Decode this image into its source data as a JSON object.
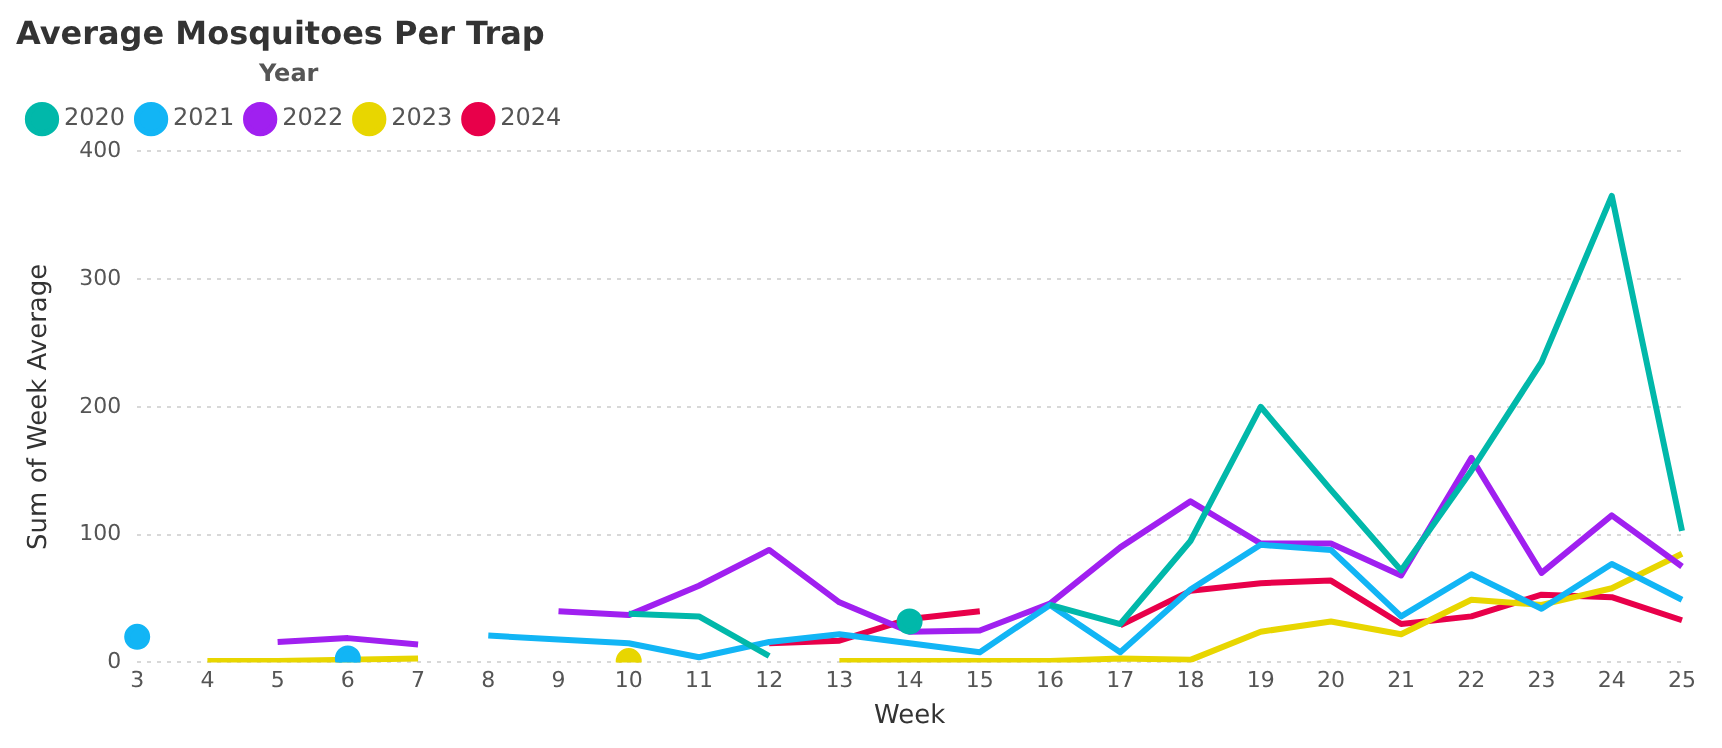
{
  "chart_data": {
    "type": "line",
    "title": "Average Mosquitoes Per Trap",
    "xlabel": "Week",
    "ylabel": "Sum of Week Average",
    "legend_title": "Year",
    "legend": "top left",
    "grid": "y",
    "categories": [
      "3",
      "4",
      "5",
      "6",
      "7",
      "8",
      "9",
      "10",
      "11",
      "12",
      "13",
      "14",
      "15",
      "16",
      "17",
      "18",
      "19",
      "20",
      "21",
      "22",
      "23",
      "24",
      "25"
    ],
    "ylim": [
      0,
      400
    ],
    "yticks": [
      0,
      100,
      200,
      300,
      400
    ],
    "series": [
      {
        "name": "2020",
        "color": "#01b8aa",
        "values": [
          null,
          null,
          null,
          null,
          null,
          null,
          null,
          38,
          36,
          5,
          null,
          32,
          null,
          45,
          30,
          95,
          200,
          135,
          72,
          150,
          235,
          365,
          103
        ]
      },
      {
        "name": "2021",
        "color": "#12b5f5",
        "values": [
          20,
          null,
          null,
          3,
          null,
          21,
          18,
          15,
          4,
          16,
          22,
          15,
          8,
          45,
          8,
          57,
          92,
          88,
          36,
          69,
          42,
          77,
          49
        ]
      },
      {
        "name": "2022",
        "color": "#a020f0",
        "values": [
          null,
          null,
          16,
          19,
          14,
          null,
          40,
          37,
          60,
          88,
          47,
          24,
          25,
          46,
          90,
          126,
          93,
          93,
          68,
          160,
          70,
          115,
          75
        ]
      },
      {
        "name": "2023",
        "color": "#e8d600",
        "values": [
          null,
          1,
          1,
          2,
          3,
          null,
          null,
          1,
          null,
          null,
          1,
          1,
          1,
          1,
          3,
          2,
          24,
          32,
          22,
          49,
          45,
          58,
          85
        ]
      },
      {
        "name": "2024",
        "color": "#e8004a",
        "values": [
          null,
          null,
          null,
          null,
          null,
          null,
          null,
          null,
          null,
          15,
          17,
          34,
          40,
          null,
          29,
          56,
          62,
          64,
          30,
          36,
          53,
          51,
          33
        ]
      }
    ]
  }
}
